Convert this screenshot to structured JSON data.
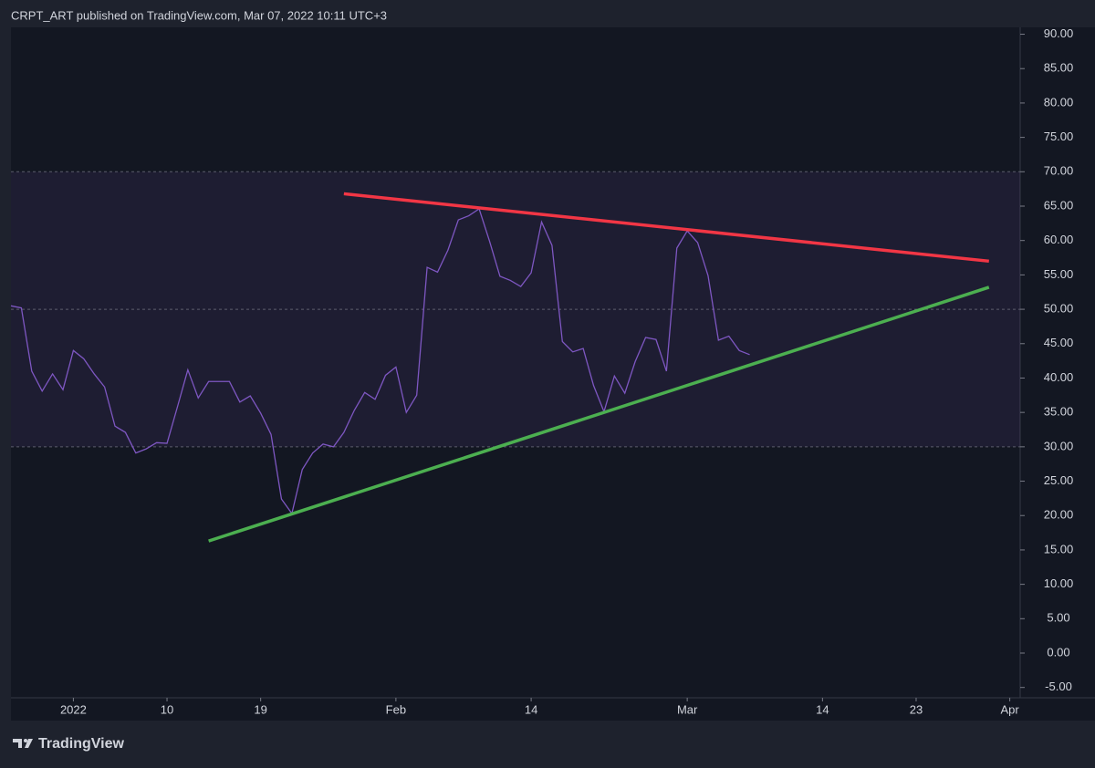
{
  "header": "CRPT_ART published on TradingView.com, Mar 07, 2022 10:11 UTC+3",
  "footer": "TradingView",
  "chart_data": {
    "type": "line",
    "x": [
      "2021-12-26",
      "2021-12-27",
      "2021-12-28",
      "2021-12-29",
      "2021-12-30",
      "2021-12-31",
      "2022-01-01",
      "2022-01-02",
      "2022-01-03",
      "2022-01-04",
      "2022-01-05",
      "2022-01-06",
      "2022-01-07",
      "2022-01-08",
      "2022-01-09",
      "2022-01-10",
      "2022-01-11",
      "2022-01-12",
      "2022-01-13",
      "2022-01-14",
      "2022-01-15",
      "2022-01-16",
      "2022-01-17",
      "2022-01-18",
      "2022-01-19",
      "2022-01-20",
      "2022-01-21",
      "2022-01-22",
      "2022-01-23",
      "2022-01-24",
      "2022-01-25",
      "2022-01-26",
      "2022-01-27",
      "2022-01-28",
      "2022-01-29",
      "2022-01-30",
      "2022-01-31",
      "2022-02-01",
      "2022-02-02",
      "2022-02-03",
      "2022-02-04",
      "2022-02-05",
      "2022-02-06",
      "2022-02-07",
      "2022-02-08",
      "2022-02-09",
      "2022-02-10",
      "2022-02-11",
      "2022-02-12",
      "2022-02-13",
      "2022-02-14",
      "2022-02-15",
      "2022-02-16",
      "2022-02-17",
      "2022-02-18",
      "2022-02-19",
      "2022-02-20",
      "2022-02-21",
      "2022-02-22",
      "2022-02-23",
      "2022-02-24",
      "2022-02-25",
      "2022-02-26",
      "2022-02-27",
      "2022-02-28",
      "2022-03-01",
      "2022-03-02",
      "2022-03-03",
      "2022-03-04",
      "2022-03-05",
      "2022-03-06",
      "2022-03-07"
    ],
    "series": [
      {
        "color": "#7e57c2",
        "values": [
          50.5,
          50.2,
          41.0,
          38.1,
          40.6,
          38.3,
          44.0,
          42.8,
          40.6,
          38.7,
          33.0,
          32.1,
          29.1,
          29.7,
          30.6,
          30.5,
          35.8,
          41.2,
          37.1,
          39.5,
          39.5,
          39.5,
          36.5,
          37.4,
          34.9,
          31.8,
          22.4,
          20.3,
          26.7,
          29.1,
          30.4,
          30.0,
          32.1,
          35.3,
          37.9,
          36.9,
          40.4,
          41.6,
          35.0,
          37.5,
          56.1,
          55.4,
          58.6,
          63.0,
          63.6,
          64.6,
          59.9,
          54.8,
          54.2,
          53.3,
          55.3,
          62.7,
          59.3,
          45.3,
          43.8,
          44.3,
          38.9,
          35.1,
          40.3,
          37.8,
          42.4,
          45.9,
          45.6,
          41.0,
          58.9,
          61.4,
          59.7,
          54.9,
          45.5,
          46.1,
          44.0,
          43.4
        ]
      }
    ],
    "band": [
      30,
      70
    ],
    "band_color": "#7e57c2",
    "levels": [
      70,
      50,
      30
    ],
    "trendlines": [
      {
        "color": "#f23645",
        "x": [
          "2022-01-27",
          "2022-03-30"
        ],
        "y": [
          66.8,
          57.0
        ]
      },
      {
        "color": "#4caf50",
        "x": [
          "2022-01-14",
          "2022-03-30"
        ],
        "y": [
          16.3,
          53.2
        ]
      }
    ],
    "xlim": [
      "2021-12-26",
      "2022-04-02"
    ],
    "ylim": [
      -6.5,
      91
    ],
    "xticks": [
      {
        "value": "2022-01-01",
        "label": "2022"
      },
      {
        "value": "2022-01-10",
        "label": "10"
      },
      {
        "value": "2022-01-19",
        "label": "19"
      },
      {
        "value": "2022-02-01",
        "label": "Feb"
      },
      {
        "value": "2022-02-14",
        "label": "14"
      },
      {
        "value": "2022-03-01",
        "label": "Mar"
      },
      {
        "value": "2022-03-14",
        "label": "14"
      },
      {
        "value": "2022-03-23",
        "label": "23"
      },
      {
        "value": "2022-04-01",
        "label": "Apr"
      }
    ],
    "yticks": [
      {
        "value": 90,
        "label": "90.00"
      },
      {
        "value": 85,
        "label": "85.00"
      },
      {
        "value": 80,
        "label": "80.00"
      },
      {
        "value": 75,
        "label": "75.00"
      },
      {
        "value": 70,
        "label": "70.00"
      },
      {
        "value": 65,
        "label": "65.00"
      },
      {
        "value": 60,
        "label": "60.00"
      },
      {
        "value": 55,
        "label": "55.00"
      },
      {
        "value": 50,
        "label": "50.00"
      },
      {
        "value": 45,
        "label": "45.00"
      },
      {
        "value": 40,
        "label": "40.00"
      },
      {
        "value": 35,
        "label": "35.00"
      },
      {
        "value": 30,
        "label": "30.00"
      },
      {
        "value": 25,
        "label": "25.00"
      },
      {
        "value": 20,
        "label": "20.00"
      },
      {
        "value": 15,
        "label": "15.00"
      },
      {
        "value": 10,
        "label": "10.00"
      },
      {
        "value": 5,
        "label": "5.00"
      },
      {
        "value": 0,
        "label": "0.00"
      },
      {
        "value": -5,
        "label": "-5.00"
      }
    ]
  }
}
